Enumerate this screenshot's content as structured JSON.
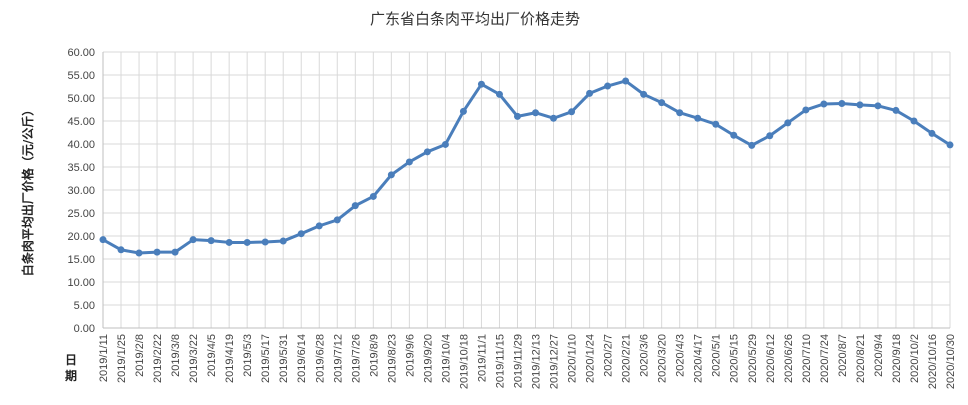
{
  "chart_data": {
    "type": "line",
    "title": "广东省白条肉平均出厂价格走势",
    "ylabel": "白条肉平均出厂价格（元/公斤）",
    "xlabel": "日期",
    "ylim": [
      0,
      60
    ],
    "ytick_step": 5,
    "y_tick_labels": [
      "0.00",
      "5.00",
      "10.00",
      "15.00",
      "20.00",
      "25.00",
      "30.00",
      "35.00",
      "40.00",
      "45.00",
      "50.00",
      "55.00",
      "60.00"
    ],
    "grid": true,
    "legend": "none",
    "line_color": "#4a7ebb",
    "categories": [
      "2019/1/11",
      "2019/1/25",
      "2019/2/8",
      "2019/2/22",
      "2019/3/8",
      "2019/3/22",
      "2019/4/5",
      "2019/4/19",
      "2019/5/3",
      "2019/5/17",
      "2019/5/31",
      "2019/6/14",
      "2019/6/28",
      "2019/7/12",
      "2019/7/26",
      "2019/8/9",
      "2019/8/23",
      "2019/9/6",
      "2019/9/20",
      "2019/10/4",
      "2019/10/18",
      "2019/11/1",
      "2019/11/15",
      "2019/11/29",
      "2019/12/13",
      "2019/12/27",
      "2020/1/10",
      "2020/1/24",
      "2020/2/7",
      "2020/2/21",
      "2020/3/6",
      "2020/3/20",
      "2020/4/3",
      "2020/4/17",
      "2020/5/1",
      "2020/5/15",
      "2020/5/29",
      "2020/6/12",
      "2020/6/26",
      "2020/7/10",
      "2020/7/24",
      "2020/8/7",
      "2020/8/21",
      "2020/9/4",
      "2020/9/18",
      "2020/10/2",
      "2020/10/16",
      "2020/10/30"
    ],
    "values": [
      19.2,
      17.0,
      16.3,
      16.5,
      16.5,
      19.2,
      19.0,
      18.6,
      18.6,
      18.7,
      18.9,
      20.5,
      22.2,
      23.5,
      26.6,
      28.6,
      33.3,
      36.1,
      38.3,
      39.9,
      47.1,
      53.0,
      50.8,
      46.0,
      46.8,
      45.6,
      47.0,
      51.0,
      52.6,
      53.7,
      50.8,
      49.0,
      46.8,
      45.6,
      44.3,
      41.9,
      39.7,
      41.8,
      44.6,
      47.4,
      48.7,
      48.8,
      48.5,
      48.3,
      47.3,
      45.0,
      42.3,
      39.8
    ]
  }
}
